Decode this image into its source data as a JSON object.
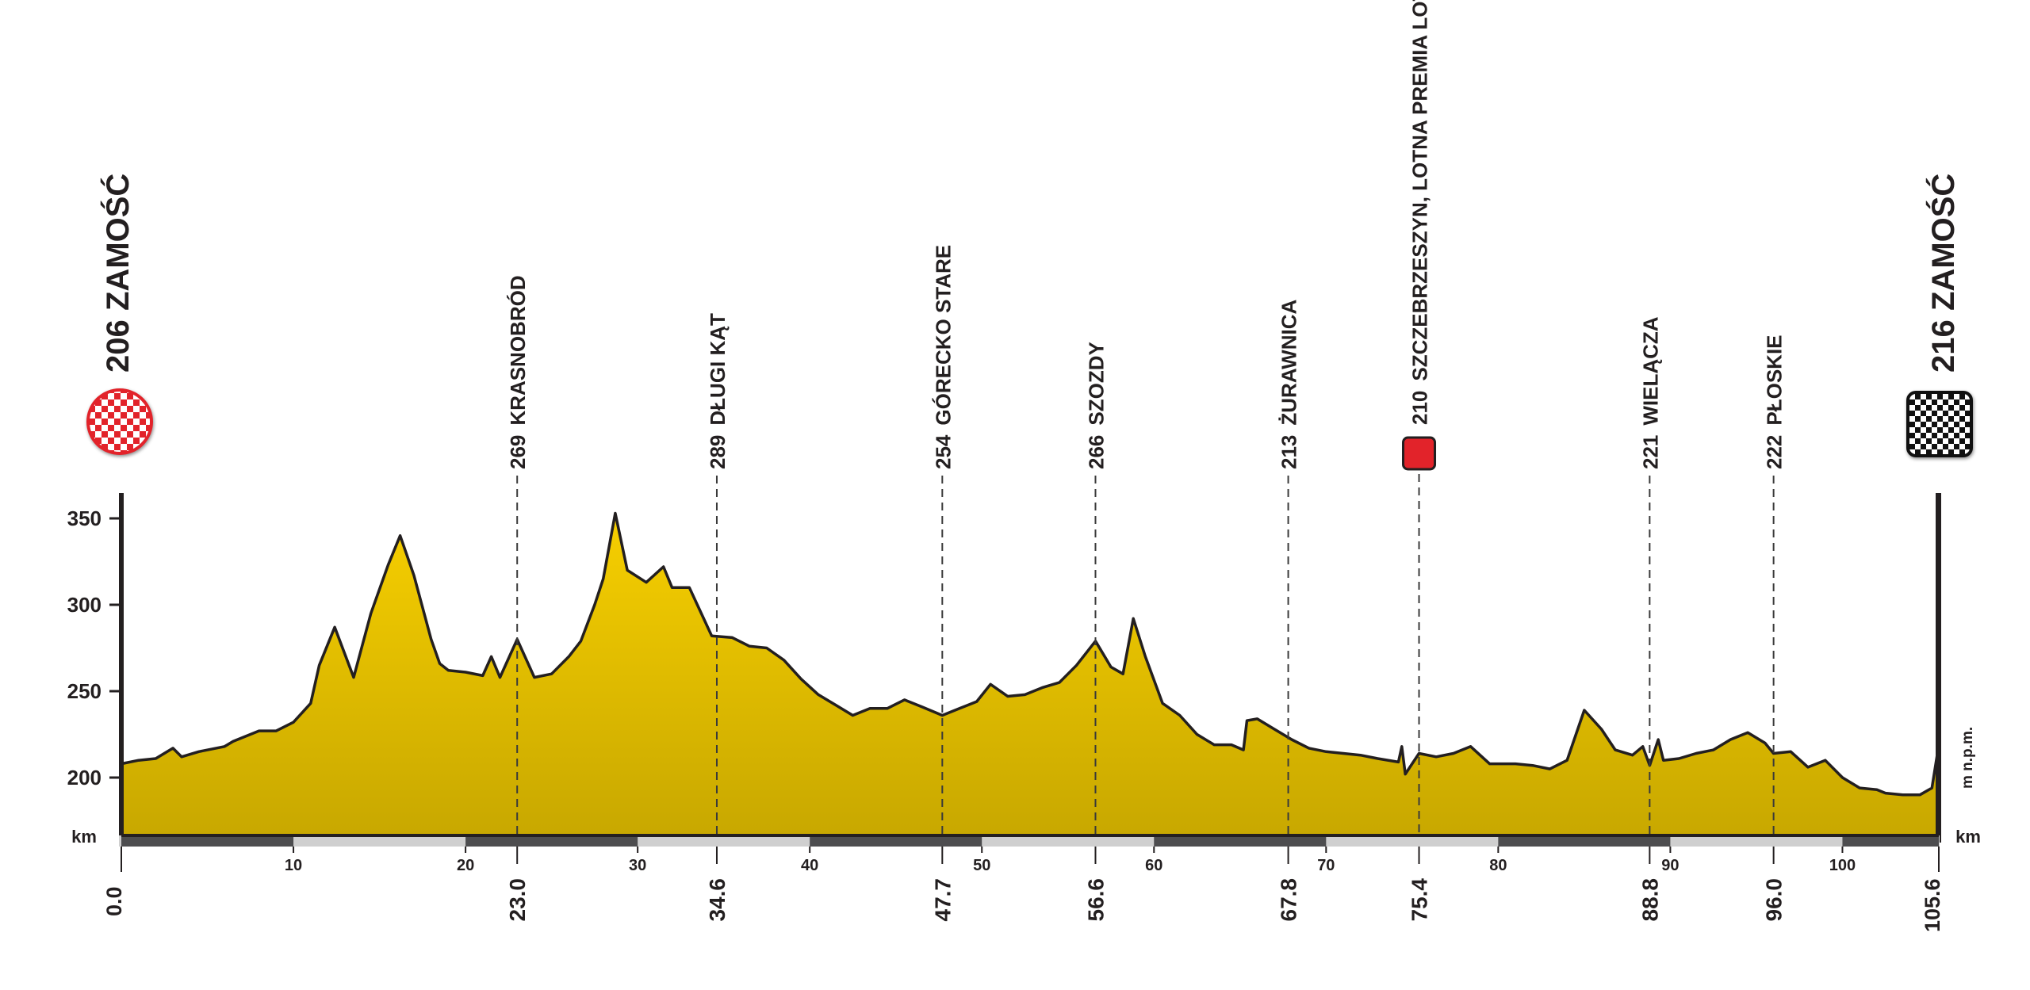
{
  "chart_data": {
    "type": "area",
    "x_unit": "km",
    "y_unit": "m n.p.m.",
    "xlim": [
      0,
      105.6
    ],
    "ylim": [
      165,
      360
    ],
    "yticks": [
      200,
      250,
      300,
      350
    ],
    "xticks": [
      10,
      20,
      30,
      40,
      50,
      60,
      70,
      80,
      90,
      100
    ],
    "start": {
      "km": "0.0",
      "altitude": "206",
      "name": "ZAMOŚĆ"
    },
    "finish": {
      "km": "105.6",
      "altitude": "216",
      "name": "ZAMOŚĆ"
    },
    "waypoints": [
      {
        "km": "23.0",
        "x": 23.0,
        "altitude": "269",
        "name": "KRASNOBRÓD",
        "sprint": false
      },
      {
        "km": "34.6",
        "x": 34.6,
        "altitude": "289",
        "name": "DŁUGI KĄT",
        "sprint": false
      },
      {
        "km": "47.7",
        "x": 47.7,
        "altitude": "254",
        "name": "GÓRECKO STARE",
        "sprint": false
      },
      {
        "km": "56.6",
        "x": 56.6,
        "altitude": "266",
        "name": "SZOZDY",
        "sprint": false
      },
      {
        "km": "67.8",
        "x": 67.8,
        "altitude": "213",
        "name": "ŻURAWNICA",
        "sprint": false
      },
      {
        "km": "75.4",
        "x": 75.4,
        "altitude": "210",
        "name": "SZCZEBRZESZYN, LOTNA PREMIA LOTTO",
        "sprint": true
      },
      {
        "km": "88.8",
        "x": 88.8,
        "altitude": "221",
        "name": "WIELĄCZA",
        "sprint": false
      },
      {
        "km": "96.0",
        "x": 96.0,
        "altitude": "222",
        "name": "PŁOSKIE",
        "sprint": false
      }
    ],
    "profile": [
      [
        0,
        208
      ],
      [
        1,
        210
      ],
      [
        2,
        211
      ],
      [
        3,
        217
      ],
      [
        3.5,
        212
      ],
      [
        4.5,
        215
      ],
      [
        6,
        218
      ],
      [
        6.5,
        221
      ],
      [
        8,
        227
      ],
      [
        9,
        227
      ],
      [
        10,
        232
      ],
      [
        11,
        243
      ],
      [
        11.5,
        265
      ],
      [
        12.4,
        287
      ],
      [
        13.5,
        258
      ],
      [
        14.5,
        295
      ],
      [
        15.5,
        323
      ],
      [
        16.2,
        340
      ],
      [
        17,
        317
      ],
      [
        18,
        280
      ],
      [
        18.5,
        266
      ],
      [
        19,
        262
      ],
      [
        20,
        261
      ],
      [
        21,
        259
      ],
      [
        21.5,
        270
      ],
      [
        22,
        258
      ],
      [
        23,
        280
      ],
      [
        24,
        258
      ],
      [
        25,
        260
      ],
      [
        26,
        270
      ],
      [
        26.7,
        279
      ],
      [
        27.5,
        300
      ],
      [
        28,
        315
      ],
      [
        28.7,
        353
      ],
      [
        29.4,
        320
      ],
      [
        30.5,
        313
      ],
      [
        31.5,
        322
      ],
      [
        32,
        310
      ],
      [
        33,
        310
      ],
      [
        34.3,
        282
      ],
      [
        35.5,
        281
      ],
      [
        36.5,
        276
      ],
      [
        37.5,
        275
      ],
      [
        38.5,
        268
      ],
      [
        39.5,
        257
      ],
      [
        40.5,
        248
      ],
      [
        41.5,
        242
      ],
      [
        42.5,
        236
      ],
      [
        43.5,
        240
      ],
      [
        44.5,
        240
      ],
      [
        45.5,
        245
      ],
      [
        46.5,
        241
      ],
      [
        47.7,
        236
      ],
      [
        48.7,
        240
      ],
      [
        49.7,
        244
      ],
      [
        50.5,
        254
      ],
      [
        51.5,
        247
      ],
      [
        52.5,
        248
      ],
      [
        53.5,
        252
      ],
      [
        54.5,
        255
      ],
      [
        55.5,
        265
      ],
      [
        56.6,
        279
      ],
      [
        57.5,
        264
      ],
      [
        58.2,
        260
      ],
      [
        58.8,
        292
      ],
      [
        59.5,
        270
      ],
      [
        60.5,
        243
      ],
      [
        61.5,
        236
      ],
      [
        62.5,
        225
      ],
      [
        63.5,
        219
      ],
      [
        64.5,
        219
      ],
      [
        65.2,
        216
      ],
      [
        65.4,
        233
      ],
      [
        66,
        234
      ],
      [
        67,
        228
      ],
      [
        68,
        222
      ],
      [
        69,
        217
      ],
      [
        70,
        215
      ],
      [
        71,
        214
      ],
      [
        72,
        213
      ],
      [
        73,
        211
      ],
      [
        74.2,
        209
      ],
      [
        74.4,
        218
      ],
      [
        74.6,
        202
      ],
      [
        75.4,
        214
      ],
      [
        76.4,
        212
      ],
      [
        77.4,
        214
      ],
      [
        78.4,
        218
      ],
      [
        79.5,
        208
      ],
      [
        81,
        208
      ],
      [
        82,
        207
      ],
      [
        83,
        205
      ],
      [
        84,
        210
      ],
      [
        85,
        239
      ],
      [
        86,
        228
      ],
      [
        86.8,
        216
      ],
      [
        87.8,
        213
      ],
      [
        88.4,
        218
      ],
      [
        88.8,
        207
      ],
      [
        89.3,
        222
      ],
      [
        89.6,
        210
      ],
      [
        90.5,
        211
      ],
      [
        91.5,
        214
      ],
      [
        92.5,
        216
      ],
      [
        93.5,
        222
      ],
      [
        94.5,
        226
      ],
      [
        95.5,
        220
      ],
      [
        96,
        214
      ],
      [
        97,
        215
      ],
      [
        98,
        206
      ],
      [
        99,
        210
      ],
      [
        100,
        200
      ],
      [
        101,
        194
      ],
      [
        102,
        193
      ],
      [
        102.5,
        191
      ],
      [
        103.5,
        190
      ],
      [
        104.5,
        190
      ],
      [
        105.2,
        194
      ],
      [
        105.6,
        219
      ]
    ]
  }
}
